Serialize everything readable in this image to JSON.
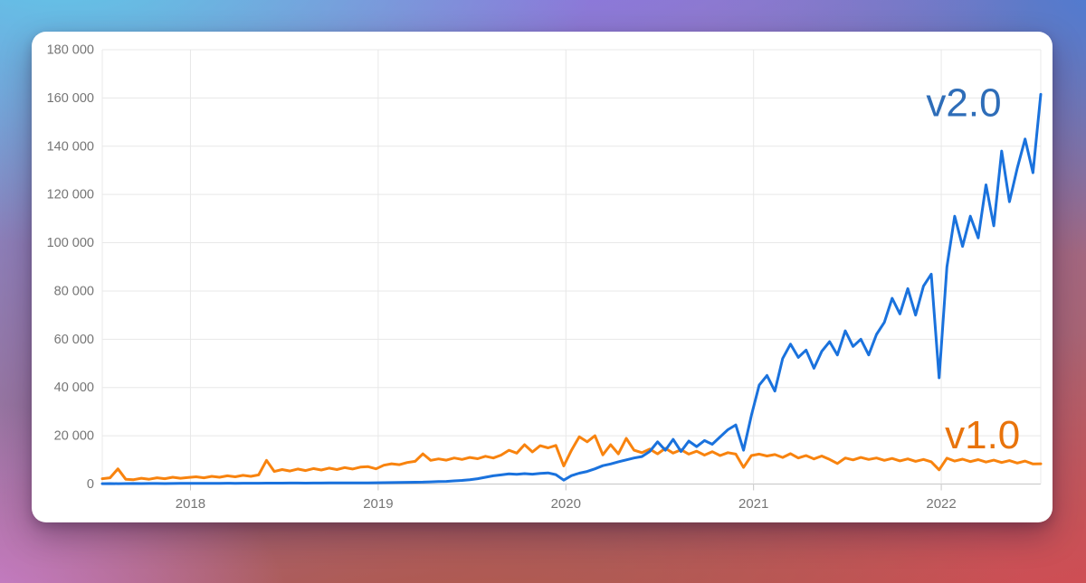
{
  "chart_data": {
    "type": "line",
    "title": "",
    "xlabel": "",
    "ylabel": "",
    "grid": true,
    "legend_position": "inline-end-labels",
    "x_start": 2017.53,
    "x_step": 0.0416667,
    "x_axis": {
      "tick_years": [
        2018,
        2019,
        2020,
        2021,
        2022
      ],
      "tick_labels": [
        "2018",
        "2019",
        "2020",
        "2021",
        "2022"
      ],
      "range": [
        2017.53,
        2022.53
      ]
    },
    "y_axis": {
      "tick_values": [
        0,
        20000,
        40000,
        60000,
        80000,
        100000,
        120000,
        140000,
        160000,
        180000
      ],
      "tick_labels": [
        "0",
        "20 000",
        "40 000",
        "60 000",
        "80 000",
        "100 000",
        "120 000",
        "140 000",
        "160 000",
        "180 000"
      ],
      "range": [
        0,
        180000
      ]
    },
    "series": [
      {
        "name": "v1.0",
        "color": "#f8830e",
        "values": [
          2200,
          2600,
          6300,
          2000,
          1800,
          2400,
          2000,
          2600,
          2200,
          2800,
          2400,
          2700,
          3000,
          2600,
          3200,
          2800,
          3400,
          3000,
          3600,
          3200,
          3800,
          9800,
          5200,
          6000,
          5400,
          6200,
          5600,
          6400,
          5800,
          6600,
          6000,
          6800,
          6200,
          7000,
          7200,
          6300,
          7800,
          8400,
          8000,
          8900,
          9400,
          12500,
          9800,
          10400,
          9900,
          10800,
          10200,
          11000,
          10500,
          11500,
          10800,
          12000,
          14000,
          12800,
          16300,
          13300,
          15900,
          15000,
          16000,
          7500,
          14000,
          19600,
          17500,
          20000,
          12100,
          16300,
          12500,
          18900,
          14000,
          13000,
          14500,
          12500,
          14800,
          12800,
          14200,
          12400,
          13600,
          12000,
          13400,
          11800,
          13000,
          12400,
          6900,
          11800,
          12400,
          11600,
          12200,
          11000,
          12600,
          10800,
          11800,
          10400,
          11600,
          10200,
          8500,
          10800,
          10000,
          11000,
          10200,
          10800,
          9800,
          10600,
          9600,
          10400,
          9400,
          10200,
          9200,
          5900,
          10700,
          9500,
          10300,
          9300,
          10100,
          9100,
          9900,
          8900,
          9700,
          8700,
          9500,
          8300,
          8400
        ]
      },
      {
        "name": "v2.0",
        "color": "#1a72dd",
        "values": [
          150,
          180,
          160,
          200,
          220,
          190,
          210,
          230,
          200,
          240,
          260,
          250,
          270,
          300,
          280,
          310,
          330,
          300,
          320,
          350,
          340,
          360,
          380,
          370,
          400,
          420,
          390,
          410,
          430,
          450,
          440,
          460,
          480,
          470,
          500,
          520,
          550,
          600,
          650,
          700,
          750,
          800,
          900,
          1000,
          1100,
          1300,
          1500,
          1800,
          2200,
          2800,
          3400,
          3800,
          4200,
          4000,
          4300,
          4100,
          4400,
          4600,
          3900,
          1600,
          3500,
          4500,
          5200,
          6300,
          7600,
          8300,
          9200,
          10000,
          10800,
          11400,
          13500,
          17500,
          14000,
          18500,
          13500,
          17800,
          15500,
          18000,
          16500,
          19500,
          22500,
          24500,
          14000,
          28500,
          41000,
          45000,
          38500,
          52000,
          58000,
          52500,
          55500,
          48000,
          55000,
          59000,
          53500,
          63500,
          57000,
          60000,
          53500,
          62000,
          67000,
          77000,
          70500,
          81000,
          70000,
          82000,
          87000,
          44000,
          90000,
          111000,
          98500,
          111000,
          102000,
          124000,
          107000,
          138000,
          117000,
          131000,
          143000,
          129000,
          161500
        ]
      }
    ],
    "annotations": [
      {
        "text": "v2.0",
        "x_year": 2022.12,
        "y_value": 158000,
        "color": "#2e6db8"
      },
      {
        "text": "v1.0",
        "x_year": 2022.22,
        "y_value": 20500,
        "color": "#e8730b"
      }
    ],
    "style": {
      "gridline_color": "#e8e8e8",
      "axis_line_color": "#c6c6c6",
      "tick_label_color": "#757575",
      "line_width": 3
    }
  }
}
